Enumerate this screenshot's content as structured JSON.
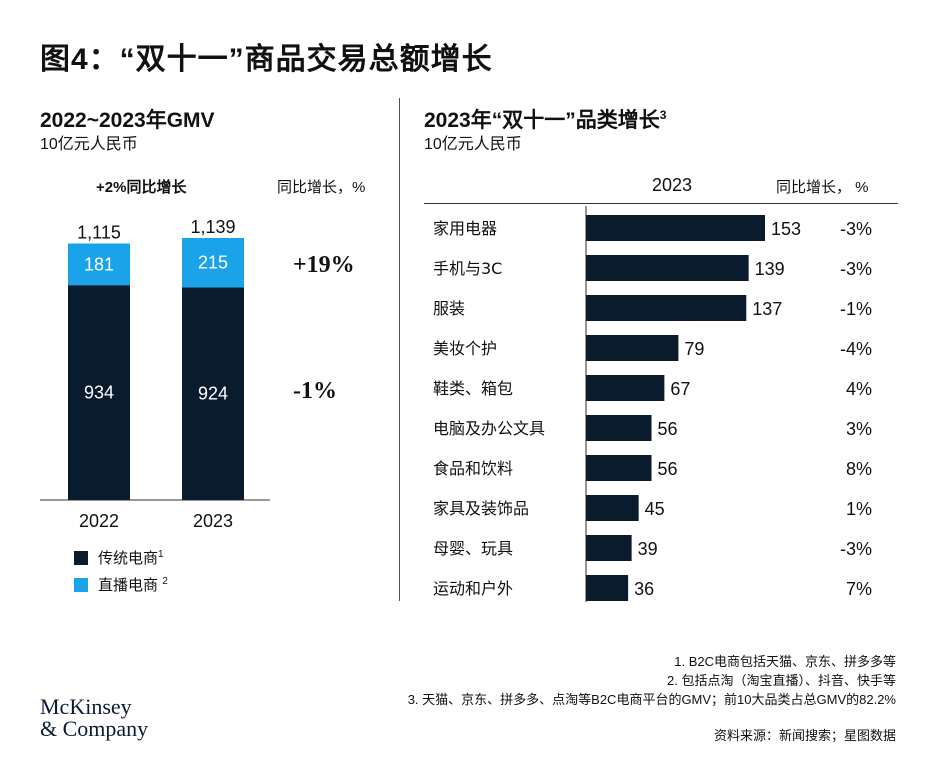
{
  "title": "图4：“双十一”商品交易总额增长",
  "colors": {
    "dark": "#0a1b2e",
    "light": "#1aa3e8"
  },
  "left": {
    "title": "2022~2023年GMV",
    "unit": "10亿元人民币",
    "growth_header": "+2%同比增长",
    "yoy_header": "同比增长，%",
    "yoy_livestream": "+19%",
    "yoy_traditional": "-1%",
    "legend": [
      {
        "label": "传统电商",
        "sup": "1"
      },
      {
        "label": "直播电商",
        "sup": "2"
      }
    ]
  },
  "right": {
    "title": "2023年“双十一”品类增长",
    "title_sup": "3",
    "unit": "10亿元人民币",
    "year_header": "2023",
    "yoy_header": "同比增长， %"
  },
  "chart_data": [
    {
      "type": "bar",
      "stacked": true,
      "title": "2022~2023年GMV",
      "ylabel": "10亿元人民币",
      "categories": [
        "2022",
        "2023"
      ],
      "series": [
        {
          "name": "传统电商",
          "values": [
            934,
            924
          ],
          "color": "#0a1b2e"
        },
        {
          "name": "直播电商",
          "values": [
            181,
            215
          ],
          "color": "#1aa3e8"
        }
      ],
      "totals": [
        "1,115",
        "1,139"
      ],
      "ylim": [
        0,
        1139
      ]
    },
    {
      "type": "bar",
      "orientation": "horizontal",
      "title": "2023年“双十一”品类增长",
      "categories": [
        "家用电器",
        "手机与3C",
        "服装",
        "美妆个护",
        "鞋类、箱包",
        "电脑及办公文具",
        "食品和饮料",
        "家具及装饰品",
        "母婴、玩具",
        "运动和户外"
      ],
      "values": [
        153,
        139,
        137,
        79,
        67,
        56,
        56,
        45,
        39,
        36
      ],
      "yoy": [
        "-3%",
        "-3%",
        "-1%",
        "-4%",
        "4%",
        "3%",
        "8%",
        "1%",
        "-3%",
        "7%"
      ],
      "xlim": [
        0,
        153
      ]
    }
  ],
  "footnotes": [
    "1. B2C电商包括天猫、京东、拼多多等",
    "2. 包括点淘（淘宝直播）、抖音、快手等",
    "3. 天猫、京东、拼多多、点淘等B2C电商平台的GMV；前10大品类占总GMV的82.2%"
  ],
  "source": "资料来源：新闻搜索；星图数据",
  "logo": {
    "line1": "McKinsey",
    "line2": "& Company"
  }
}
